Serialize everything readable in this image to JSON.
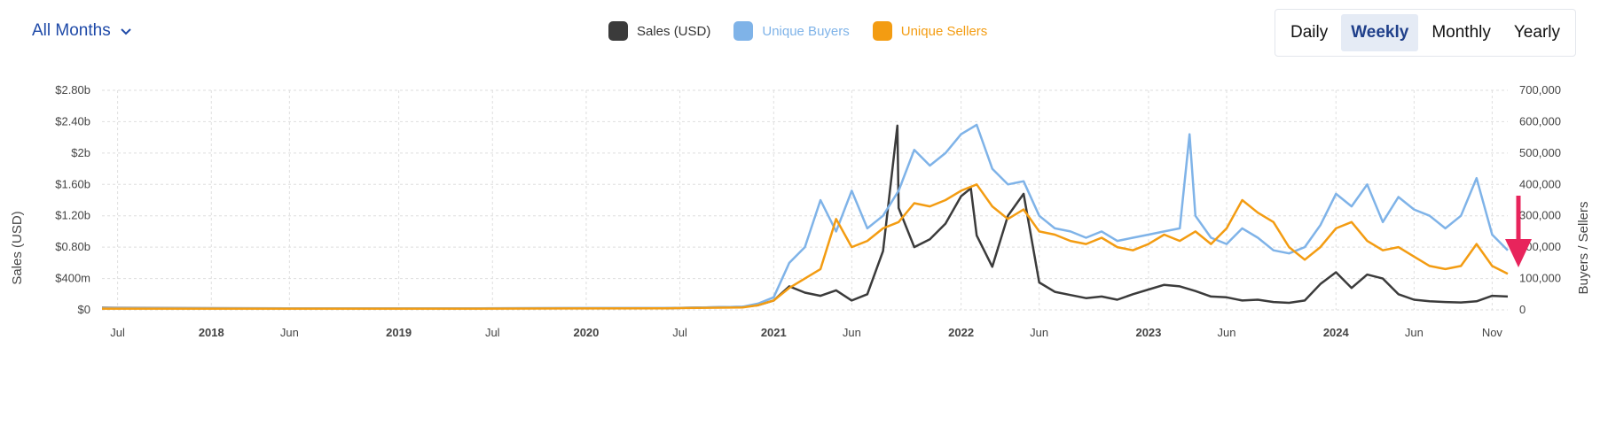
{
  "filter": {
    "label": "All Months",
    "icon": "chevron-down-icon"
  },
  "legend": [
    {
      "label": "Sales (USD)",
      "color": "#3b3b3b"
    },
    {
      "label": "Unique Buyers",
      "color": "#7fb3e8"
    },
    {
      "label": "Unique Sellers",
      "color": "#f39c12"
    }
  ],
  "tabs": [
    {
      "label": "Daily",
      "active": false
    },
    {
      "label": "Weekly",
      "active": true
    },
    {
      "label": "Monthly",
      "active": false
    },
    {
      "label": "Yearly",
      "active": false
    }
  ],
  "chart_data": {
    "type": "line",
    "x_range": [
      "2017-06",
      "2024-12"
    ],
    "y_left": {
      "label": "Sales (USD)",
      "range": [
        0,
        2800000000
      ],
      "ticks": [
        [
          "$0",
          0
        ],
        [
          "$400m",
          400000000
        ],
        [
          "$0.80b",
          800000000
        ],
        [
          "$1.20b",
          1200000000
        ],
        [
          "$1.60b",
          1600000000
        ],
        [
          "$2b",
          2000000000
        ],
        [
          "$2.40b",
          2400000000
        ],
        [
          "$2.80b",
          2800000000
        ]
      ]
    },
    "y_right": {
      "label": "Buyers / Sellers",
      "range": [
        0,
        700000
      ],
      "ticks": [
        [
          "0",
          0
        ],
        [
          "100,000",
          100000
        ],
        [
          "200,000",
          200000
        ],
        [
          "300,000",
          300000
        ],
        [
          "400,000",
          400000
        ],
        [
          "500,000",
          500000
        ],
        [
          "600,000",
          600000
        ],
        [
          "700,000",
          700000
        ]
      ]
    },
    "x_ticks": [
      {
        "label": "Jul",
        "date": "2017-07",
        "bold": false
      },
      {
        "label": "2018",
        "date": "2018-01",
        "bold": true
      },
      {
        "label": "Jun",
        "date": "2018-06",
        "bold": false
      },
      {
        "label": "2019",
        "date": "2019-01",
        "bold": true
      },
      {
        "label": "Jul",
        "date": "2019-07",
        "bold": false
      },
      {
        "label": "2020",
        "date": "2020-01",
        "bold": true
      },
      {
        "label": "Jul",
        "date": "2020-07",
        "bold": false
      },
      {
        "label": "2021",
        "date": "2021-01",
        "bold": true
      },
      {
        "label": "Jun",
        "date": "2021-06",
        "bold": false
      },
      {
        "label": "2022",
        "date": "2022-01",
        "bold": true
      },
      {
        "label": "Jun",
        "date": "2022-06",
        "bold": false
      },
      {
        "label": "2023",
        "date": "2023-01",
        "bold": true
      },
      {
        "label": "Jun",
        "date": "2023-06",
        "bold": false
      },
      {
        "label": "2024",
        "date": "2024-01",
        "bold": true
      },
      {
        "label": "Jun",
        "date": "2024-06",
        "bold": false
      },
      {
        "label": "Nov",
        "date": "2024-11",
        "bold": false
      }
    ],
    "grid": true,
    "legend_position": "top-center",
    "annotation": {
      "type": "arrow",
      "color": "#e8245c",
      "points_to": "2024-12 Unique Buyers decline"
    },
    "series": [
      {
        "name": "Sales (USD)",
        "axis": "left",
        "color": "#3b3b3b",
        "points": [
          [
            "2017-06",
            25000000
          ],
          [
            "2018-06",
            20000000
          ],
          [
            "2019-06",
            20000000
          ],
          [
            "2020-06",
            22000000
          ],
          [
            "2020-11",
            40000000
          ],
          [
            "2020-12",
            60000000
          ],
          [
            "2021-01",
            120000000
          ],
          [
            "2021-02",
            300000000
          ],
          [
            "2021-03",
            220000000
          ],
          [
            "2021-04",
            180000000
          ],
          [
            "2021-05",
            250000000
          ],
          [
            "2021-06",
            120000000
          ],
          [
            "2021-07",
            200000000
          ],
          [
            "2021-08",
            750000000
          ],
          [
            "2021-08-29",
            2350000000
          ],
          [
            "2021-09",
            1300000000
          ],
          [
            "2021-10",
            800000000
          ],
          [
            "2021-11",
            900000000
          ],
          [
            "2021-12",
            1100000000
          ],
          [
            "2022-01",
            1450000000
          ],
          [
            "2022-01-20",
            1550000000
          ],
          [
            "2022-02",
            950000000
          ],
          [
            "2022-03",
            550000000
          ],
          [
            "2022-04",
            1200000000
          ],
          [
            "2022-05",
            1480000000
          ],
          [
            "2022-06",
            350000000
          ],
          [
            "2022-07",
            230000000
          ],
          [
            "2022-08",
            190000000
          ],
          [
            "2022-09",
            150000000
          ],
          [
            "2022-10",
            170000000
          ],
          [
            "2022-11",
            130000000
          ],
          [
            "2022-12",
            200000000
          ],
          [
            "2023-01",
            260000000
          ],
          [
            "2023-02",
            320000000
          ],
          [
            "2023-03",
            300000000
          ],
          [
            "2023-04",
            240000000
          ],
          [
            "2023-05",
            170000000
          ],
          [
            "2023-06",
            160000000
          ],
          [
            "2023-07",
            120000000
          ],
          [
            "2023-08",
            130000000
          ],
          [
            "2023-09",
            100000000
          ],
          [
            "2023-10",
            90000000
          ],
          [
            "2023-11",
            120000000
          ],
          [
            "2023-12",
            330000000
          ],
          [
            "2024-01",
            480000000
          ],
          [
            "2024-02",
            280000000
          ],
          [
            "2024-03",
            450000000
          ],
          [
            "2024-04",
            400000000
          ],
          [
            "2024-05",
            200000000
          ],
          [
            "2024-06",
            130000000
          ],
          [
            "2024-07",
            110000000
          ],
          [
            "2024-08",
            100000000
          ],
          [
            "2024-09",
            95000000
          ],
          [
            "2024-10",
            110000000
          ],
          [
            "2024-11",
            180000000
          ],
          [
            "2024-12",
            170000000
          ]
        ]
      },
      {
        "name": "Unique Buyers",
        "axis": "right",
        "color": "#7fb3e8",
        "points": [
          [
            "2017-06",
            5000
          ],
          [
            "2018-06",
            5000
          ],
          [
            "2019-06",
            5000
          ],
          [
            "2020-06",
            6000
          ],
          [
            "2020-11",
            10000
          ],
          [
            "2020-12",
            20000
          ],
          [
            "2021-01",
            40000
          ],
          [
            "2021-02",
            150000
          ],
          [
            "2021-03",
            200000
          ],
          [
            "2021-04",
            350000
          ],
          [
            "2021-05",
            250000
          ],
          [
            "2021-06",
            380000
          ],
          [
            "2021-07",
            260000
          ],
          [
            "2021-08",
            300000
          ],
          [
            "2021-09",
            380000
          ],
          [
            "2021-10",
            510000
          ],
          [
            "2021-11",
            460000
          ],
          [
            "2021-12",
            500000
          ],
          [
            "2022-01",
            560000
          ],
          [
            "2022-02",
            590000
          ],
          [
            "2022-03",
            450000
          ],
          [
            "2022-04",
            400000
          ],
          [
            "2022-05",
            410000
          ],
          [
            "2022-06",
            300000
          ],
          [
            "2022-07",
            260000
          ],
          [
            "2022-08",
            250000
          ],
          [
            "2022-09",
            230000
          ],
          [
            "2022-10",
            250000
          ],
          [
            "2022-11",
            220000
          ],
          [
            "2022-12",
            230000
          ],
          [
            "2023-01",
            240000
          ],
          [
            "2023-02",
            250000
          ],
          [
            "2023-03",
            260000
          ],
          [
            "2023-03-20",
            560000
          ],
          [
            "2023-04",
            300000
          ],
          [
            "2023-05",
            230000
          ],
          [
            "2023-06",
            210000
          ],
          [
            "2023-07",
            260000
          ],
          [
            "2023-08",
            230000
          ],
          [
            "2023-09",
            190000
          ],
          [
            "2023-10",
            180000
          ],
          [
            "2023-11",
            200000
          ],
          [
            "2023-12",
            270000
          ],
          [
            "2024-01",
            370000
          ],
          [
            "2024-02",
            330000
          ],
          [
            "2024-03",
            400000
          ],
          [
            "2024-04",
            280000
          ],
          [
            "2024-05",
            360000
          ],
          [
            "2024-06",
            320000
          ],
          [
            "2024-07",
            300000
          ],
          [
            "2024-08",
            260000
          ],
          [
            "2024-09",
            300000
          ],
          [
            "2024-10",
            420000
          ],
          [
            "2024-11",
            240000
          ],
          [
            "2024-12",
            190000
          ]
        ]
      },
      {
        "name": "Unique Sellers",
        "axis": "right",
        "color": "#f39c12",
        "points": [
          [
            "2017-06",
            4000
          ],
          [
            "2018-06",
            4000
          ],
          [
            "2019-06",
            4000
          ],
          [
            "2020-06",
            5000
          ],
          [
            "2020-11",
            8000
          ],
          [
            "2020-12",
            15000
          ],
          [
            "2021-01",
            30000
          ],
          [
            "2021-02",
            70000
          ],
          [
            "2021-03",
            100000
          ],
          [
            "2021-04",
            130000
          ],
          [
            "2021-05",
            290000
          ],
          [
            "2021-06",
            200000
          ],
          [
            "2021-07",
            220000
          ],
          [
            "2021-08",
            260000
          ],
          [
            "2021-09",
            280000
          ],
          [
            "2021-10",
            340000
          ],
          [
            "2021-11",
            330000
          ],
          [
            "2021-12",
            350000
          ],
          [
            "2022-01",
            380000
          ],
          [
            "2022-02",
            400000
          ],
          [
            "2022-03",
            330000
          ],
          [
            "2022-04",
            290000
          ],
          [
            "2022-05",
            320000
          ],
          [
            "2022-06",
            250000
          ],
          [
            "2022-07",
            240000
          ],
          [
            "2022-08",
            220000
          ],
          [
            "2022-09",
            210000
          ],
          [
            "2022-10",
            230000
          ],
          [
            "2022-11",
            200000
          ],
          [
            "2022-12",
            190000
          ],
          [
            "2023-01",
            210000
          ],
          [
            "2023-02",
            240000
          ],
          [
            "2023-03",
            220000
          ],
          [
            "2023-04",
            250000
          ],
          [
            "2023-05",
            210000
          ],
          [
            "2023-06",
            260000
          ],
          [
            "2023-07",
            350000
          ],
          [
            "2023-08",
            310000
          ],
          [
            "2023-09",
            280000
          ],
          [
            "2023-10",
            200000
          ],
          [
            "2023-11",
            160000
          ],
          [
            "2023-12",
            200000
          ],
          [
            "2024-01",
            260000
          ],
          [
            "2024-02",
            280000
          ],
          [
            "2024-03",
            220000
          ],
          [
            "2024-04",
            190000
          ],
          [
            "2024-05",
            200000
          ],
          [
            "2024-06",
            170000
          ],
          [
            "2024-07",
            140000
          ],
          [
            "2024-08",
            130000
          ],
          [
            "2024-09",
            140000
          ],
          [
            "2024-10",
            210000
          ],
          [
            "2024-11",
            140000
          ],
          [
            "2024-12",
            115000
          ]
        ]
      }
    ]
  }
}
